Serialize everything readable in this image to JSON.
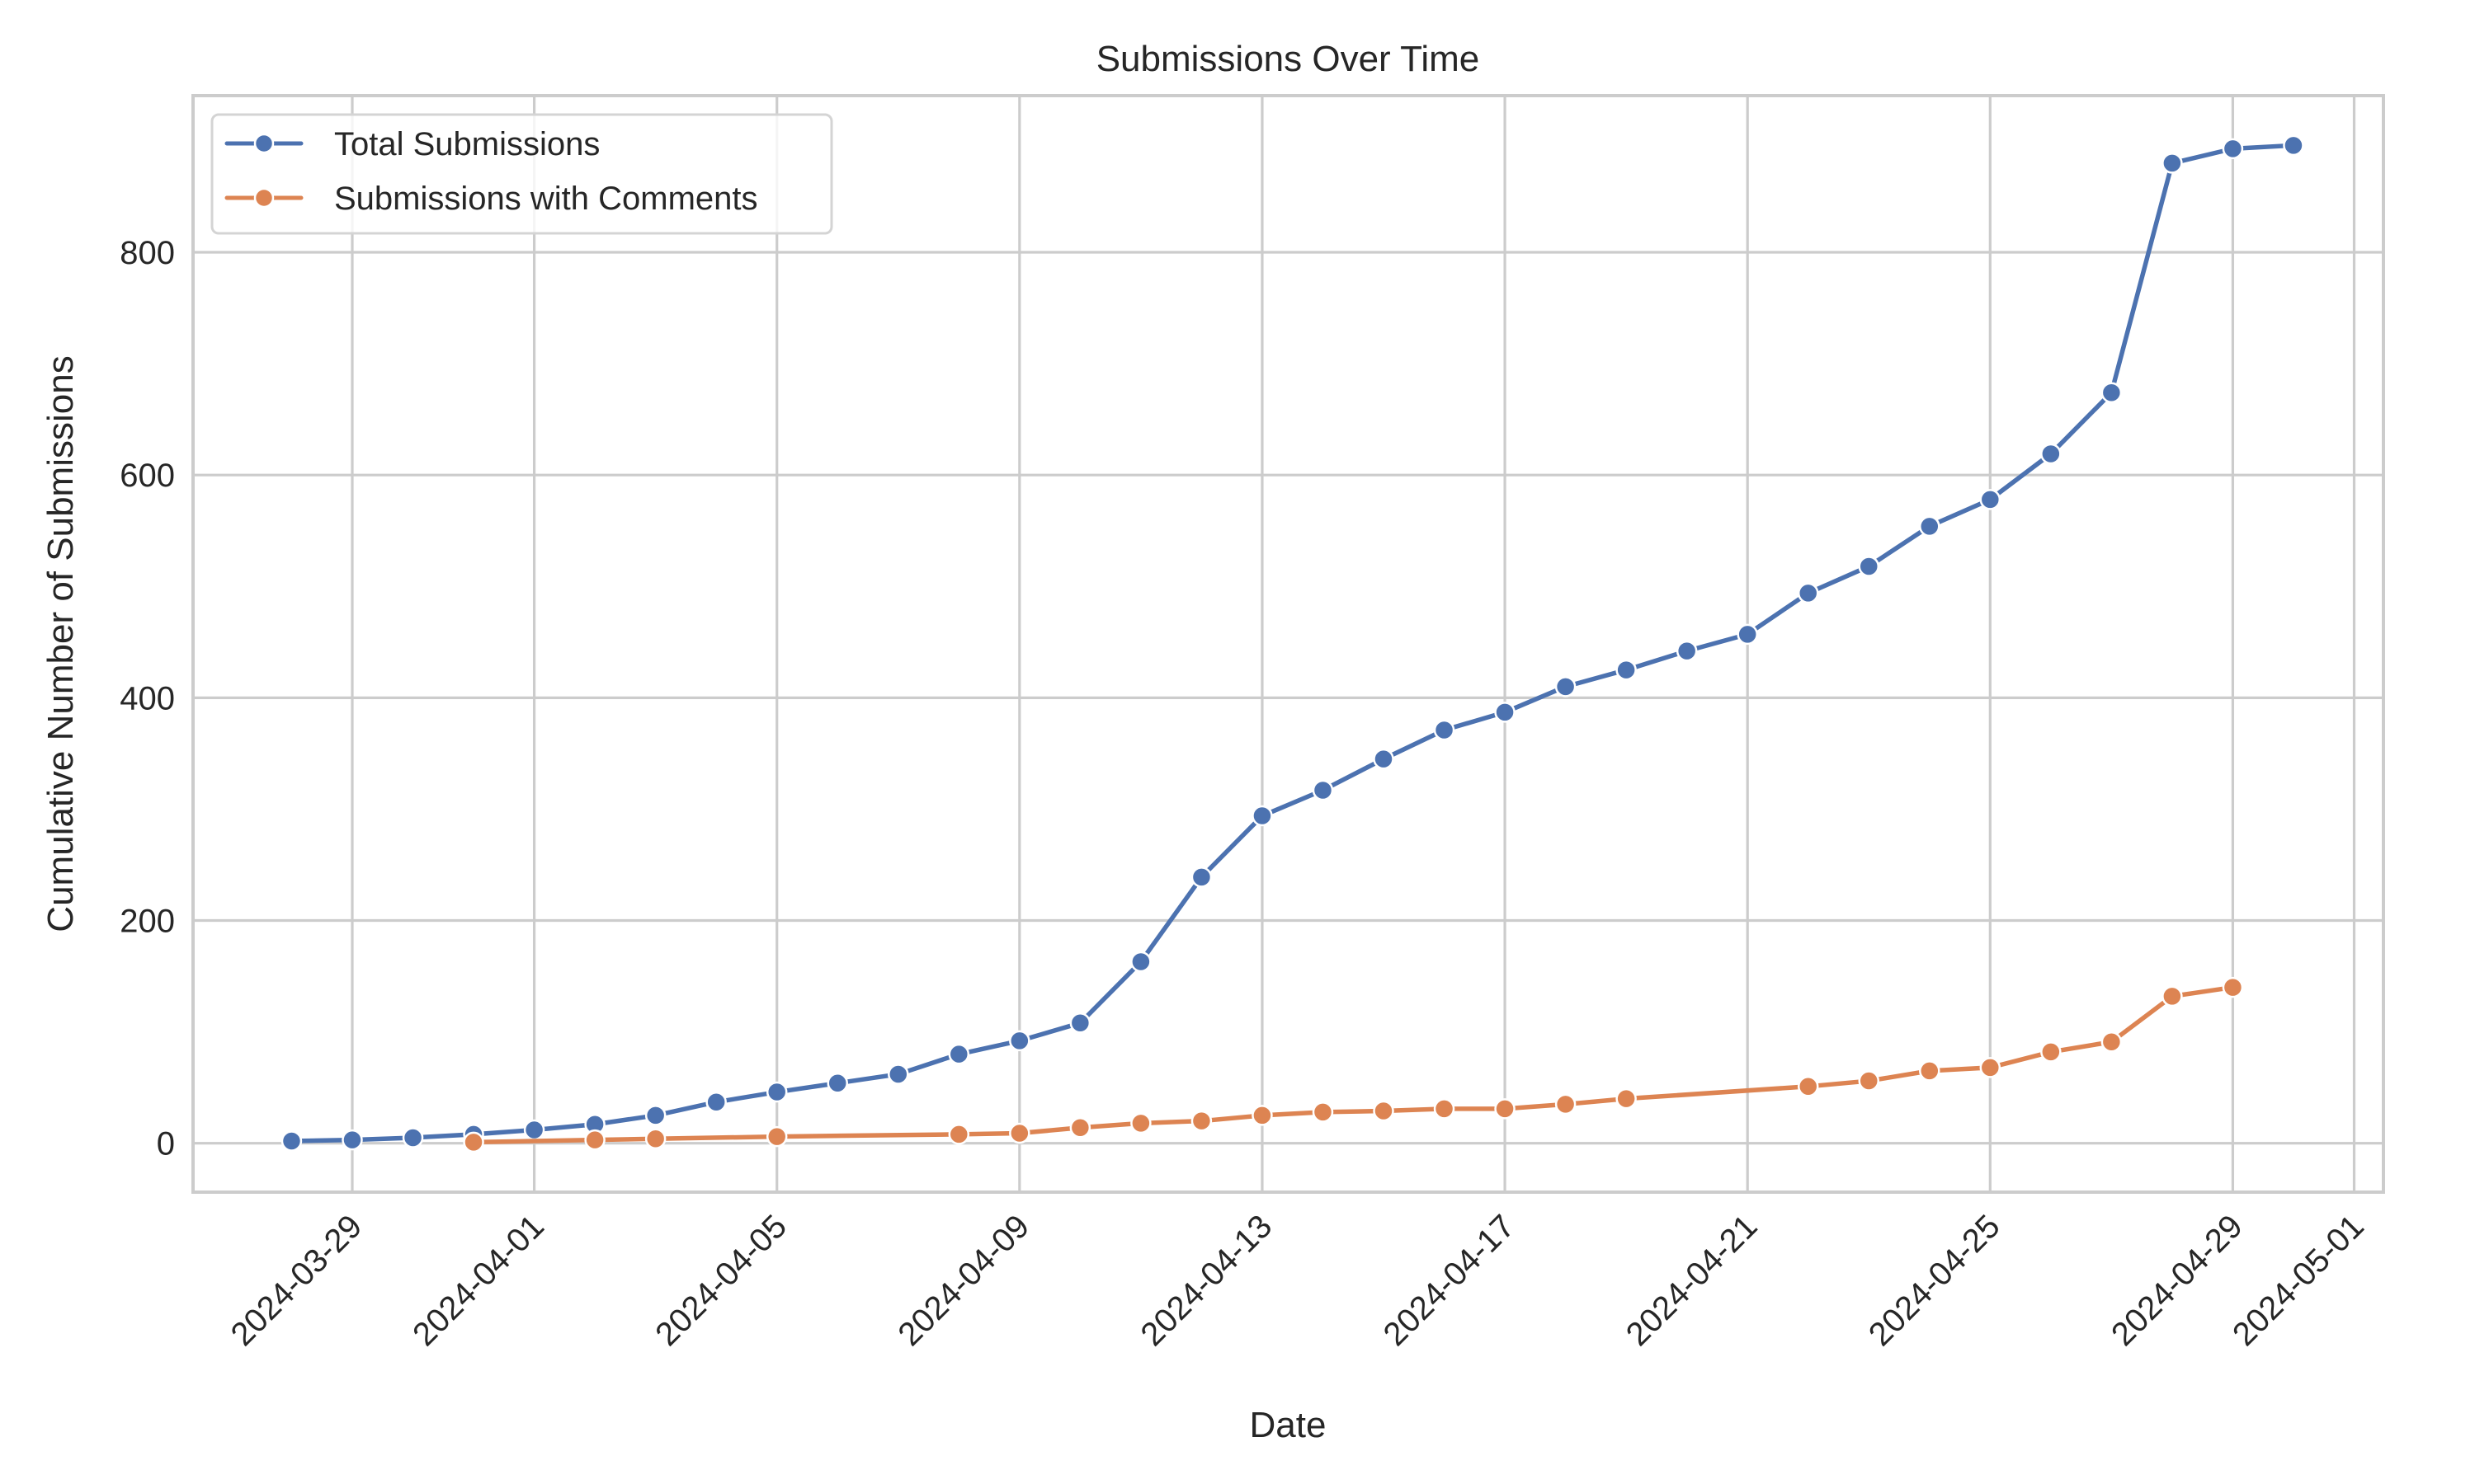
{
  "chart_data": {
    "type": "line",
    "title": "Submissions Over Time",
    "xlabel": "Date",
    "ylabel": "Cumulative Number of Submissions",
    "x_tick_labels": [
      "2024-03-29",
      "2024-04-01",
      "2024-04-05",
      "2024-04-09",
      "2024-04-13",
      "2024-04-17",
      "2024-04-21",
      "2024-04-25",
      "2024-04-29",
      "2024-05-01"
    ],
    "y_ticks": [
      0,
      200,
      400,
      600,
      800
    ],
    "ylim": [
      -44,
      945
    ],
    "xlim": [
      "2024-03-26",
      "2024-05-01"
    ],
    "grid": true,
    "legend_position": "upper left",
    "series": [
      {
        "name": "Total Submissions",
        "color": "#4c72b0",
        "marker": "circle",
        "points": [
          {
            "x": "2024-03-28",
            "y": 2
          },
          {
            "x": "2024-03-29",
            "y": 3
          },
          {
            "x": "2024-03-30",
            "y": 5
          },
          {
            "x": "2024-03-31",
            "y": 8
          },
          {
            "x": "2024-04-01",
            "y": 12
          },
          {
            "x": "2024-04-02",
            "y": 17
          },
          {
            "x": "2024-04-03",
            "y": 25
          },
          {
            "x": "2024-04-04",
            "y": 37
          },
          {
            "x": "2024-04-05",
            "y": 46
          },
          {
            "x": "2024-04-06",
            "y": 54
          },
          {
            "x": "2024-04-07",
            "y": 62
          },
          {
            "x": "2024-04-08",
            "y": 80
          },
          {
            "x": "2024-04-09",
            "y": 92
          },
          {
            "x": "2024-04-10",
            "y": 108
          },
          {
            "x": "2024-04-11",
            "y": 163
          },
          {
            "x": "2024-04-12",
            "y": 239
          },
          {
            "x": "2024-04-13",
            "y": 294
          },
          {
            "x": "2024-04-14",
            "y": 317
          },
          {
            "x": "2024-04-15",
            "y": 345
          },
          {
            "x": "2024-04-16",
            "y": 371
          },
          {
            "x": "2024-04-17",
            "y": 387
          },
          {
            "x": "2024-04-18",
            "y": 410
          },
          {
            "x": "2024-04-19",
            "y": 425
          },
          {
            "x": "2024-04-20",
            "y": 442
          },
          {
            "x": "2024-04-21",
            "y": 457
          },
          {
            "x": "2024-04-22",
            "y": 494
          },
          {
            "x": "2024-04-23",
            "y": 518
          },
          {
            "x": "2024-04-24",
            "y": 554
          },
          {
            "x": "2024-04-25",
            "y": 578
          },
          {
            "x": "2024-04-26",
            "y": 619
          },
          {
            "x": "2024-04-27",
            "y": 674
          },
          {
            "x": "2024-04-28",
            "y": 880
          },
          {
            "x": "2024-04-29",
            "y": 893
          },
          {
            "x": "2024-04-30",
            "y": 896
          }
        ]
      },
      {
        "name": "Submissions with Comments",
        "color": "#dd8452",
        "marker": "circle",
        "points": [
          {
            "x": "2024-03-31",
            "y": 1
          },
          {
            "x": "2024-04-02",
            "y": 3
          },
          {
            "x": "2024-04-03",
            "y": 4
          },
          {
            "x": "2024-04-05",
            "y": 6
          },
          {
            "x": "2024-04-08",
            "y": 8
          },
          {
            "x": "2024-04-09",
            "y": 9
          },
          {
            "x": "2024-04-10",
            "y": 14
          },
          {
            "x": "2024-04-11",
            "y": 18
          },
          {
            "x": "2024-04-12",
            "y": 20
          },
          {
            "x": "2024-04-13",
            "y": 25
          },
          {
            "x": "2024-04-14",
            "y": 28
          },
          {
            "x": "2024-04-15",
            "y": 29
          },
          {
            "x": "2024-04-16",
            "y": 31
          },
          {
            "x": "2024-04-17",
            "y": 31
          },
          {
            "x": "2024-04-18",
            "y": 35
          },
          {
            "x": "2024-04-19",
            "y": 40
          },
          {
            "x": "2024-04-22",
            "y": 51
          },
          {
            "x": "2024-04-23",
            "y": 56
          },
          {
            "x": "2024-04-24",
            "y": 65
          },
          {
            "x": "2024-04-25",
            "y": 68
          },
          {
            "x": "2024-04-26",
            "y": 82
          },
          {
            "x": "2024-04-27",
            "y": 91
          },
          {
            "x": "2024-04-28",
            "y": 132
          },
          {
            "x": "2024-04-29",
            "y": 140
          }
        ]
      }
    ]
  },
  "colors": {
    "background": "#ffffff",
    "grid": "#cccccc",
    "text": "#262626"
  }
}
